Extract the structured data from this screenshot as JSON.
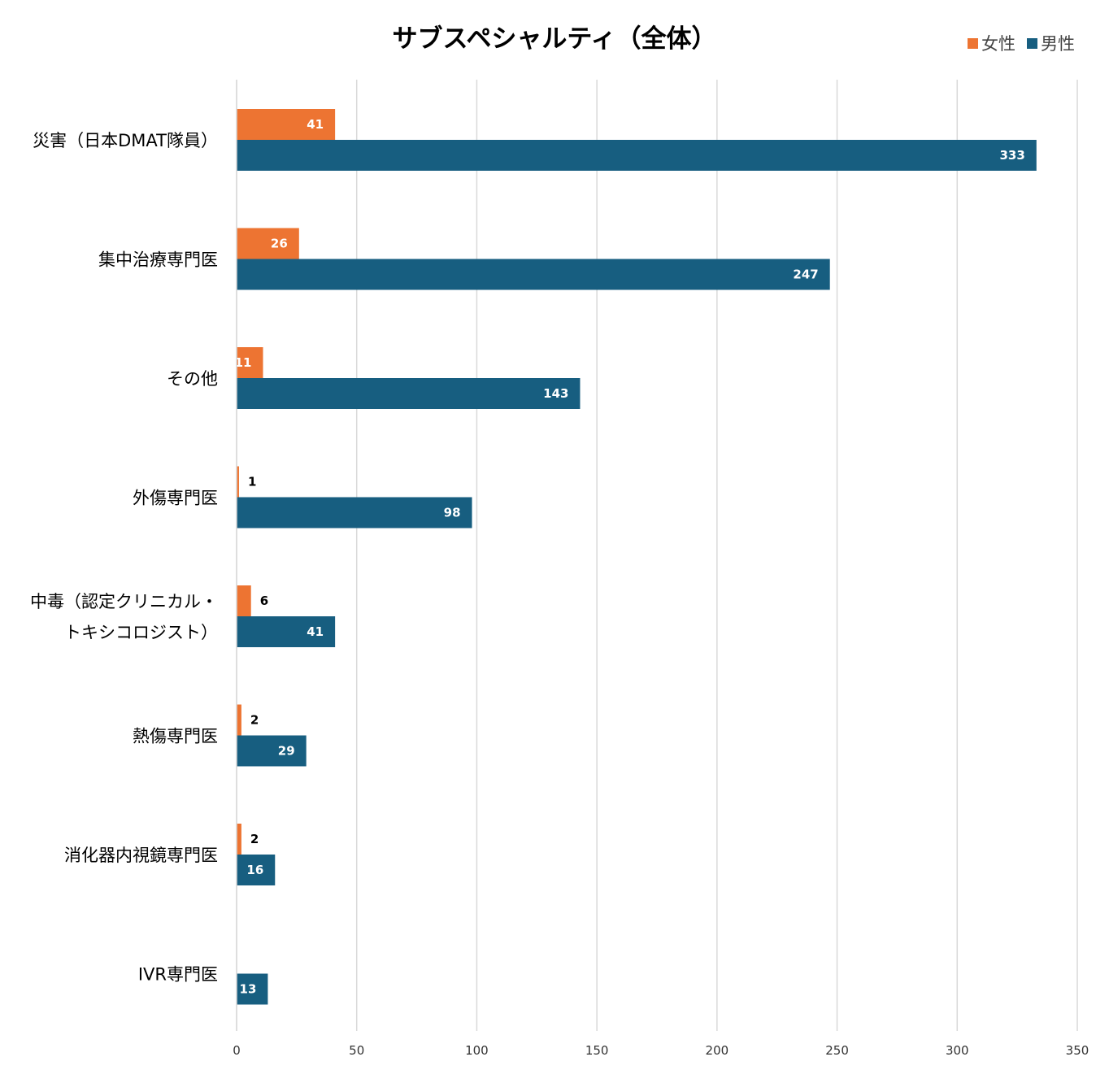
{
  "chart_data": {
    "type": "bar",
    "orientation": "horizontal",
    "title": "サブスペシャルティ（全体）",
    "categories": [
      [
        "災害（日本DMAT隊員）"
      ],
      [
        "集中治療専門医"
      ],
      [
        "その他"
      ],
      [
        "外傷専門医"
      ],
      [
        "中毒（認定クリニカル・",
        "トキシコロジスト）"
      ],
      [
        "熱傷専門医"
      ],
      [
        "消化器内視鏡専門医"
      ],
      [
        "IVR専門医"
      ]
    ],
    "series": [
      {
        "name": "女性",
        "color": "#ED7432",
        "values": [
          41,
          26,
          11,
          1,
          6,
          2,
          2,
          0
        ]
      },
      {
        "name": "男性",
        "color": "#175E80",
        "values": [
          333,
          247,
          143,
          98,
          41,
          29,
          16,
          13
        ]
      }
    ],
    "xlim": [
      0,
      350
    ],
    "xticks": [
      0,
      50,
      100,
      150,
      200,
      250,
      300,
      350
    ],
    "grid": true,
    "legend_position": "top-right"
  }
}
